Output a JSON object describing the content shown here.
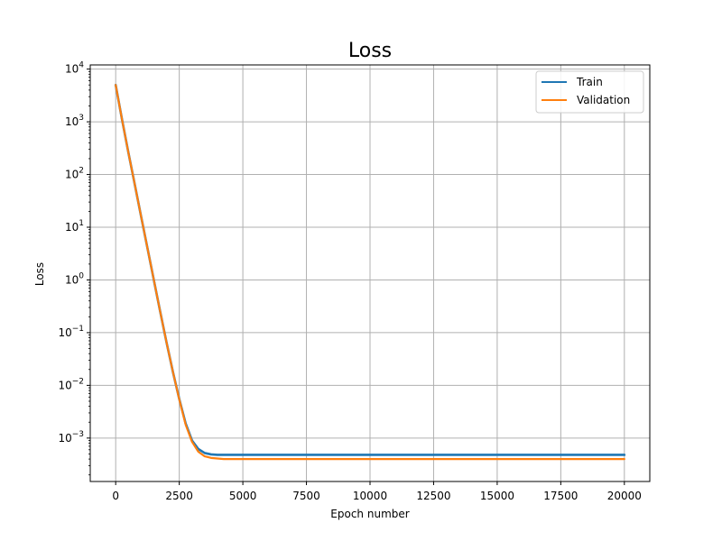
{
  "chart_data": {
    "type": "line",
    "title": "Loss",
    "xlabel": "Epoch number",
    "ylabel": "Loss",
    "xlim": [
      -1000,
      21000
    ],
    "ylim": [
      0.00015,
      12000
    ],
    "yscale": "log",
    "grid": true,
    "legend_position": "top-right",
    "x_ticks": [
      0,
      2500,
      5000,
      7500,
      10000,
      12500,
      15000,
      17500,
      20000
    ],
    "x_tick_labels": [
      "0",
      "2500",
      "5000",
      "7500",
      "10000",
      "12500",
      "15000",
      "17500",
      "20000"
    ],
    "y_ticks": [
      0.001,
      0.01,
      0.1,
      1,
      10,
      100,
      1000,
      10000
    ],
    "y_tick_labels": [
      {
        "base": "10",
        "exp": "−3"
      },
      {
        "base": "10",
        "exp": "−2"
      },
      {
        "base": "10",
        "exp": "−1"
      },
      {
        "base": "10",
        "exp": "0"
      },
      {
        "base": "10",
        "exp": "1"
      },
      {
        "base": "10",
        "exp": "2"
      },
      {
        "base": "10",
        "exp": "3"
      },
      {
        "base": "10",
        "exp": "4"
      }
    ],
    "series": [
      {
        "name": "Train",
        "color": "#1f77b4",
        "x": [
          0,
          250,
          500,
          750,
          1000,
          1250,
          1500,
          1750,
          2000,
          2250,
          2500,
          2750,
          3000,
          3250,
          3500,
          3750,
          4000,
          4250,
          4500,
          5000,
          7500,
          10000,
          12500,
          15000,
          17500,
          20000
        ],
        "y": [
          5000,
          1100,
          260,
          65,
          16,
          4,
          1,
          0.25,
          0.065,
          0.018,
          0.0055,
          0.0019,
          0.0009,
          0.00062,
          0.00052,
          0.00049,
          0.00048,
          0.00048,
          0.00048,
          0.00048,
          0.00048,
          0.00048,
          0.00048,
          0.00048,
          0.00048,
          0.00048
        ]
      },
      {
        "name": "Validation",
        "color": "#ff7f0e",
        "x": [
          0,
          250,
          500,
          750,
          1000,
          1250,
          1500,
          1750,
          2000,
          2250,
          2500,
          2750,
          3000,
          3250,
          3500,
          3750,
          4000,
          4250,
          4500,
          5000,
          7500,
          10000,
          12500,
          15000,
          17500,
          20000
        ],
        "y": [
          5000,
          1100,
          260,
          65,
          16,
          4,
          1,
          0.25,
          0.065,
          0.018,
          0.0054,
          0.0018,
          0.00085,
          0.00055,
          0.00045,
          0.00042,
          0.00041,
          0.0004,
          0.0004,
          0.0004,
          0.0004,
          0.0004,
          0.0004,
          0.0004,
          0.0004,
          0.0004
        ]
      }
    ]
  }
}
